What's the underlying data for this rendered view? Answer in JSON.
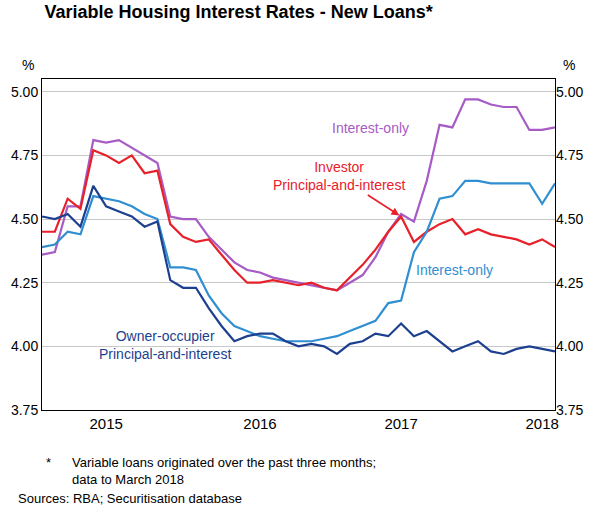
{
  "chart_data": {
    "type": "line",
    "title": "Variable Housing Interest Rates - New Loans*",
    "y_label": "%",
    "y2_label": "%",
    "categories": [
      null,
      null,
      null,
      null,
      null,
      "2015",
      null,
      null,
      null,
      null,
      null,
      null,
      null,
      null,
      null,
      null,
      null,
      "2016",
      null,
      null,
      null,
      null,
      null,
      null,
      null,
      null,
      null,
      null,
      "2017",
      null,
      null,
      null,
      null,
      null,
      null,
      null,
      null,
      null,
      null,
      "2018",
      null
    ],
    "series": [
      {
        "name": "Interest-only",
        "color": "#a65bc5",
        "values": [
          4.36,
          4.37,
          4.55,
          4.55,
          4.81,
          4.8,
          4.81,
          4.78,
          4.75,
          4.72,
          4.51,
          4.5,
          4.5,
          4.43,
          4.38,
          4.33,
          4.3,
          4.29,
          4.27,
          4.26,
          4.25,
          4.24,
          4.23,
          4.22,
          4.25,
          4.28,
          4.35,
          4.45,
          4.52,
          4.49,
          4.65,
          4.87,
          4.86,
          4.97,
          4.97,
          4.95,
          4.94,
          4.94,
          4.85,
          4.85,
          4.86
        ]
      },
      {
        "name": "Investor\nPrincipal-and-interest",
        "color": "#e8202a",
        "values": [
          4.45,
          4.45,
          4.58,
          4.54,
          4.77,
          4.75,
          4.72,
          4.75,
          4.68,
          4.69,
          4.48,
          4.43,
          4.41,
          4.42,
          4.36,
          4.3,
          4.25,
          4.25,
          4.26,
          4.25,
          4.24,
          4.25,
          4.23,
          4.22,
          4.27,
          4.32,
          4.38,
          4.45,
          4.51,
          4.41,
          4.45,
          4.48,
          4.5,
          4.44,
          4.46,
          4.44,
          4.43,
          4.42,
          4.4,
          4.42,
          4.39
        ]
      },
      {
        "name": "Interest-only",
        "color": "#2f8fd1",
        "values": [
          4.39,
          4.4,
          4.45,
          4.44,
          4.59,
          4.58,
          4.57,
          4.55,
          4.52,
          4.5,
          4.31,
          4.31,
          4.3,
          4.2,
          4.13,
          4.08,
          4.06,
          4.04,
          4.03,
          4.02,
          4.02,
          4.02,
          4.03,
          4.04,
          4.06,
          4.08,
          4.1,
          4.17,
          4.18,
          4.37,
          4.45,
          4.58,
          4.59,
          4.65,
          4.65,
          4.64,
          4.64,
          4.64,
          4.64,
          4.56,
          4.64
        ]
      },
      {
        "name": "Owner-occupier\nPrincipal-and-interest",
        "color": "#1c3f8f",
        "values": [
          4.51,
          4.5,
          4.52,
          4.47,
          4.63,
          4.55,
          4.53,
          4.51,
          4.47,
          4.49,
          4.26,
          4.23,
          4.23,
          4.15,
          4.08,
          4.02,
          4.04,
          4.05,
          4.05,
          4.02,
          4.0,
          4.01,
          4.0,
          3.97,
          4.01,
          4.02,
          4.05,
          4.04,
          4.09,
          4.04,
          4.06,
          4.02,
          3.98,
          4.0,
          4.02,
          3.98,
          3.97,
          3.99,
          4.0,
          3.99,
          3.98
        ]
      }
    ],
    "ylim": [
      3.75,
      5.05
    ],
    "yticks": [
      3.75,
      {
        "value": 4,
        "label": "4.00"
      },
      4.25,
      {
        "value": 4.5,
        "label": "4.50"
      },
      4.75,
      {
        "value": 5,
        "label": "5.00"
      }
    ],
    "y2lim": [
      3.75,
      5.05
    ],
    "y2ticks": [
      3.75,
      {
        "value": 4,
        "label": "4.00"
      },
      4.25,
      {
        "value": 4.5,
        "label": "4.50"
      },
      4.75,
      {
        "value": 5,
        "label": "5.00"
      }
    ],
    "grid": true,
    "legend": "none",
    "note_marker": "*",
    "notes": "Variable loans originated over the past three months;\ndata to March 2018",
    "source": "Sources: RBA; Securitisation database"
  }
}
